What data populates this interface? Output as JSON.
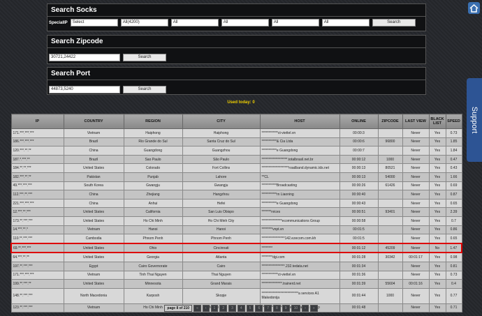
{
  "socks": {
    "title": "Search Socks",
    "label": "SpecialIP",
    "selects": [
      "Select",
      "All(4200)",
      "All",
      "All",
      "All",
      "All"
    ],
    "button": "Search"
  },
  "zipcode": {
    "title": "Search Zipcode",
    "input": "30721,24422",
    "button": "Search"
  },
  "port": {
    "title": "Search Port",
    "input": "44873,5240",
    "button": "Search"
  },
  "used_today": "Used today: 0",
  "support": "Support",
  "table": {
    "headers": [
      "IP",
      "COUNTRY",
      "REGION",
      "CITY",
      "HOST",
      "ONLINE",
      "ZIPCODE",
      "LAST VIEW",
      "BLACK LIST",
      "SPEED"
    ],
    "rows": [
      [
        "171.***.***.***",
        "Vietnam",
        "Haiphong",
        "Haiphong",
        "************ct-viettel.vn",
        "00:00:3",
        null,
        "Never",
        "Yes",
        "0.73"
      ],
      [
        "186.***.***.***",
        "Brazil",
        "Rio Grande do Sul",
        "Santa Cruz do Sul",
        "***********& Cia Ltda",
        "00:00:6",
        "96800",
        "Never",
        "Yes",
        "1.85"
      ],
      [
        "120.***.**.**",
        "China",
        "Guangdong",
        "Guangzhou",
        "***********e Guangdong",
        "00:00:7",
        null,
        "Never",
        "Yes",
        "1.84"
      ],
      [
        "187.*.***.**",
        "Brazil",
        "Sao Paulo",
        "São Paulo",
        "*******************.totalbrasil.net.br",
        "00:00:12",
        "1000",
        "Never",
        "Yes",
        "0.47"
      ],
      [
        "184.**.**.***",
        "United States",
        "Colorado",
        "Fort Collins",
        "********************roadband.dynamic.tds.net",
        "00:00:13",
        "80521",
        "Never",
        "Yes",
        "0.43"
      ],
      [
        "182.***.**.**",
        "Pakistan",
        "Punjab",
        "Lahore",
        "**CL",
        "00:00:13",
        "54000",
        "Never",
        "Yes",
        "1.66"
      ],
      [
        "49.***.***.***",
        "South Korea",
        "Gwangju",
        "Gwangju",
        "***********Broadcasting",
        "00:00:26",
        "61426",
        "Never",
        "Yes",
        "0.69"
      ],
      [
        "112.***.**.***",
        "China",
        "Zhejiang",
        "Hangzhou",
        "***********rn Liaoning",
        "00:00:40",
        null,
        "Never",
        "Yes",
        "0.87"
      ],
      [
        "221.***.***.***",
        "China",
        "Anhui",
        "Hefei",
        "***********e Guangdong",
        "00:00:43",
        null,
        "Never",
        "Yes",
        "0.65"
      ],
      [
        "12.***.**.***",
        "United States",
        "California",
        "San Luis Obispo",
        "*******rvices",
        "00:00:51",
        "93401",
        "Never",
        "Yes",
        "2.39"
      ],
      [
        "173.**.***.***",
        "United States",
        "Ho Chi Minh",
        "Ho Chi Minh City",
        "***************ecommunications Group",
        "00:00:58",
        null,
        "Never",
        "Yes",
        "0.7"
      ],
      [
        "14.***.**.*",
        "Vietnam",
        "Hanoi",
        "Hanoi",
        "********vnpt.vn",
        "00:01:5",
        null,
        "Never",
        "Yes",
        "0.86"
      ],
      [
        "110.**.***.***",
        "Cambodia",
        "Phnom Penh",
        "Phnom Penh",
        "*****************142.ezecom.com.kh",
        "00:01:5",
        null,
        "Never",
        "Yes",
        "0.65"
      ],
      [
        "69.**.***.***",
        "United States",
        "Ohio",
        "Cincinnati",
        "********",
        "00:01:12",
        "45209",
        "Never",
        "No",
        "1.47"
      ],
      [
        "64.***.**.**",
        "United States",
        "Georgia",
        "Atlanta",
        "********dgi.com",
        "00:01:28",
        "30342",
        "00:01:17",
        "Yes",
        "0.98"
      ],
      [
        "197.**.***.***",
        "Egypt",
        "Cairo Governorate",
        "Cairo",
        "*****************.232.tedata.net",
        "00:01:34",
        null,
        "Never",
        "Yes",
        "0.81"
      ],
      [
        "171.***.***.***",
        "Vietnam",
        "Tinh Thai Nguyen",
        "Thai Nguyen",
        "************ct-viettel.vn",
        "00:01:36",
        null,
        "Never",
        "Yes",
        "0.73"
      ],
      [
        "199.**.***.**",
        "United States",
        "Minnesota",
        "Grand Marais",
        "***************.trainerd.net",
        "00:01:39",
        "55604",
        "00:01:16",
        "Yes",
        "0.4"
      ],
      [
        "148.**.***.***",
        "North Macedonia",
        "Karposh",
        "Skopje",
        "***************************a services A1 Makedonija",
        "00:01:44",
        "1000",
        "Never",
        "Yes",
        "0.77"
      ],
      [
        "123.**.***.***",
        "Vietnam",
        "Ho Chi Minh",
        "Ho Chi Minh City",
        "***************ecommunications Group",
        "00:01:48",
        null,
        "Never",
        "Yes",
        "0.71"
      ]
    ]
  },
  "pagination": {
    "status": "page 8 of 210",
    "links": [
      "«",
      "‹",
      "1",
      "2",
      "3",
      "4",
      "5",
      "6",
      "7",
      "8",
      "9",
      "10",
      "›",
      "»"
    ]
  }
}
